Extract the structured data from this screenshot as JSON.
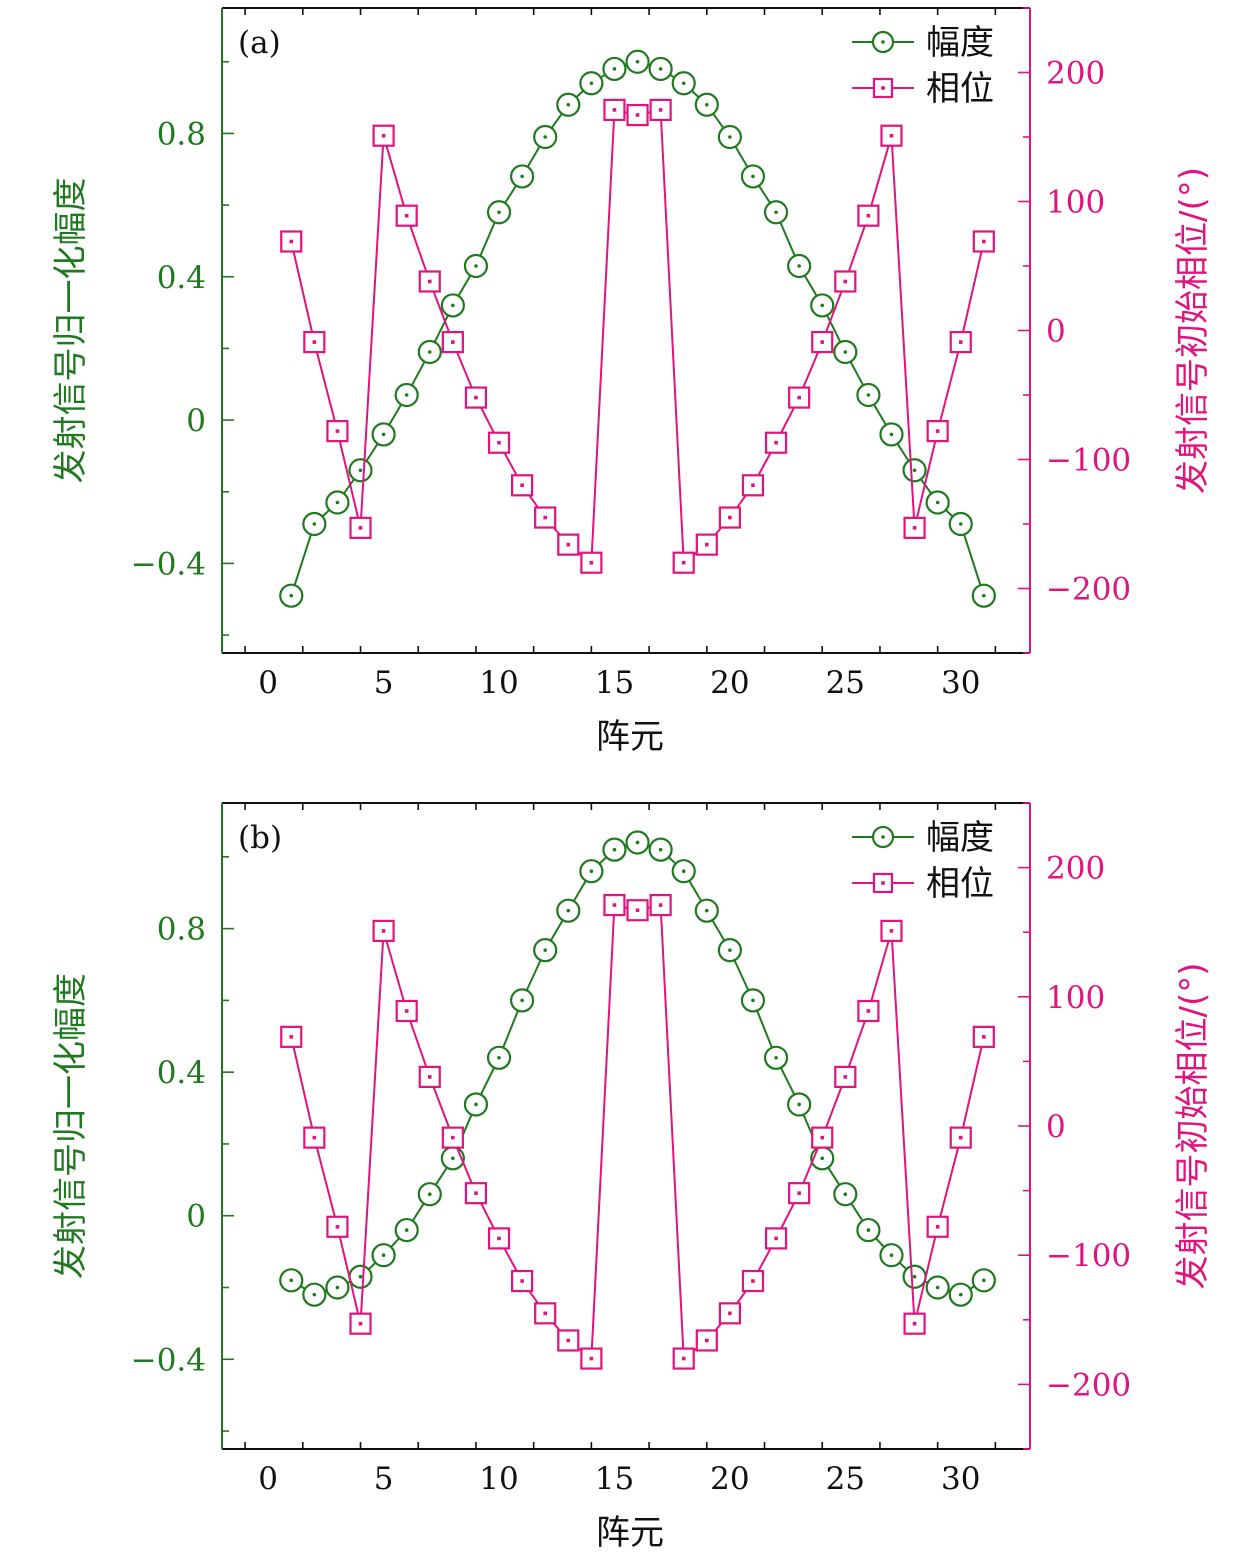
{
  "colors": {
    "amplitude": "#1f7a1f",
    "phase": "#e0137f",
    "axis": "#111111"
  },
  "chart_data": [
    {
      "type": "line",
      "panel_label": "(a)",
      "xlabel": "阵元",
      "ylabel_left": "发射信号归一化幅度",
      "ylabel_right": "发射信号初始相位/(°)",
      "xlim": [
        -2,
        33
      ],
      "ylim_left": [
        -0.65,
        1.15
      ],
      "ylim_right": [
        -250,
        250
      ],
      "x_ticks": [
        0,
        5,
        10,
        15,
        20,
        25,
        30
      ],
      "x_tick_labels": [
        "0",
        "5",
        "10",
        "15",
        "20",
        "25",
        "30"
      ],
      "left_ticks": [
        -0.4,
        0,
        0.4,
        0.8
      ],
      "left_tick_labels": [
        "−0.4",
        "0",
        "0.4",
        "0.8"
      ],
      "right_ticks": [
        -200,
        -100,
        0,
        100,
        200
      ],
      "right_tick_labels": [
        "−200",
        "−100",
        "0",
        "100",
        "200"
      ],
      "legend": [
        "幅度",
        "相位"
      ],
      "legend_position": "top-right",
      "x": [
        1,
        2,
        3,
        4,
        5,
        6,
        7,
        8,
        9,
        10,
        11,
        12,
        13,
        14,
        15,
        16,
        17,
        18,
        19,
        20,
        21,
        22,
        23,
        24,
        25,
        26,
        27,
        28,
        29,
        30,
        31
      ],
      "series": [
        {
          "name": "幅度",
          "axis": "left",
          "values": [
            -0.49,
            -0.29,
            -0.23,
            -0.14,
            -0.04,
            0.07,
            0.19,
            0.32,
            0.43,
            0.58,
            0.68,
            0.79,
            0.88,
            0.94,
            0.98,
            1.0,
            0.98,
            0.94,
            0.88,
            0.79,
            0.68,
            0.58,
            0.43,
            0.32,
            0.19,
            0.07,
            -0.04,
            -0.14,
            -0.23,
            -0.29,
            -0.49
          ]
        },
        {
          "name": "相位",
          "axis": "right",
          "values": [
            69,
            -9,
            -78,
            -153,
            151,
            89,
            38,
            -9,
            -52,
            -87,
            -120,
            -145,
            -166,
            -180,
            171,
            167,
            171,
            -180,
            -166,
            -145,
            -120,
            -87,
            -52,
            -9,
            38,
            89,
            151,
            -153,
            -78,
            -9,
            69
          ]
        }
      ]
    },
    {
      "type": "line",
      "panel_label": "(b)",
      "xlabel": "阵元",
      "ylabel_left": "发射信号归一化幅度",
      "ylabel_right": "发射信号初始相位/(°)",
      "xlim": [
        -2,
        33
      ],
      "ylim_left": [
        -0.65,
        1.15
      ],
      "ylim_right": [
        -250,
        250
      ],
      "x_ticks": [
        0,
        5,
        10,
        15,
        20,
        25,
        30
      ],
      "x_tick_labels": [
        "0",
        "5",
        "10",
        "15",
        "20",
        "25",
        "30"
      ],
      "left_ticks": [
        -0.4,
        0,
        0.4,
        0.8
      ],
      "left_tick_labels": [
        "−0.4",
        "0",
        "0.4",
        "0.8"
      ],
      "right_ticks": [
        -200,
        -100,
        0,
        100,
        200
      ],
      "right_tick_labels": [
        "−200",
        "−100",
        "0",
        "100",
        "200"
      ],
      "legend": [
        "幅度",
        "相位"
      ],
      "legend_position": "top-right",
      "x": [
        1,
        2,
        3,
        4,
        5,
        6,
        7,
        8,
        9,
        10,
        11,
        12,
        13,
        14,
        15,
        16,
        17,
        18,
        19,
        20,
        21,
        22,
        23,
        24,
        25,
        26,
        27,
        28,
        29,
        30,
        31
      ],
      "series": [
        {
          "name": "幅度",
          "axis": "left",
          "values": [
            -0.18,
            -0.22,
            -0.2,
            -0.17,
            -0.11,
            -0.04,
            0.06,
            0.16,
            0.31,
            0.44,
            0.6,
            0.74,
            0.85,
            0.96,
            1.02,
            1.04,
            1.02,
            0.96,
            0.85,
            0.74,
            0.6,
            0.44,
            0.31,
            0.16,
            0.06,
            -0.04,
            -0.11,
            -0.17,
            -0.2,
            -0.22,
            -0.18
          ]
        },
        {
          "name": "相位",
          "axis": "right",
          "values": [
            69,
            -9,
            -78,
            -153,
            151,
            89,
            38,
            -9,
            -52,
            -87,
            -120,
            -145,
            -166,
            -180,
            171,
            167,
            171,
            -180,
            -166,
            -145,
            -120,
            -87,
            -52,
            -9,
            38,
            89,
            151,
            -153,
            -78,
            -9,
            69
          ]
        }
      ]
    }
  ]
}
